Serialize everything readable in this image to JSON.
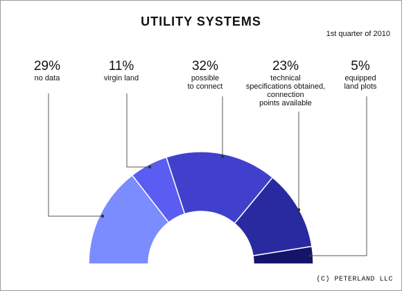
{
  "chart_data": {
    "type": "pie",
    "title": "UTILITY SYSTEMS",
    "subtitle": "1st quarter of 2010",
    "slices": [
      {
        "label": "no data",
        "pct_label": "29%",
        "value": 29,
        "color": "#7b8cff"
      },
      {
        "label": "virgin land",
        "pct_label": "11%",
        "value": 11,
        "color": "#5a5cf2"
      },
      {
        "label": "possible to connect",
        "pct_label": "32%",
        "value": 32,
        "color": "#4040cc"
      },
      {
        "label": "technical specifications obtained, connection points available",
        "pct_label": "23%",
        "value": 23,
        "color": "#2a2aa0"
      },
      {
        "label": "equipped land plots",
        "pct_label": "5%",
        "value": 5,
        "color": "#14146b"
      }
    ]
  },
  "labels": [
    {
      "pct": "29%",
      "desc": "no data"
    },
    {
      "pct": "11%",
      "desc": "virgin land"
    },
    {
      "pct": "32%",
      "desc": "possible\nto connect"
    },
    {
      "pct": "23%",
      "desc": "technical\nspecifications obtained,\nconnection\npoints available"
    },
    {
      "pct": "5%",
      "desc": "equipped\nland plots"
    }
  ],
  "copyright": "(C) PETERLAND LLC"
}
